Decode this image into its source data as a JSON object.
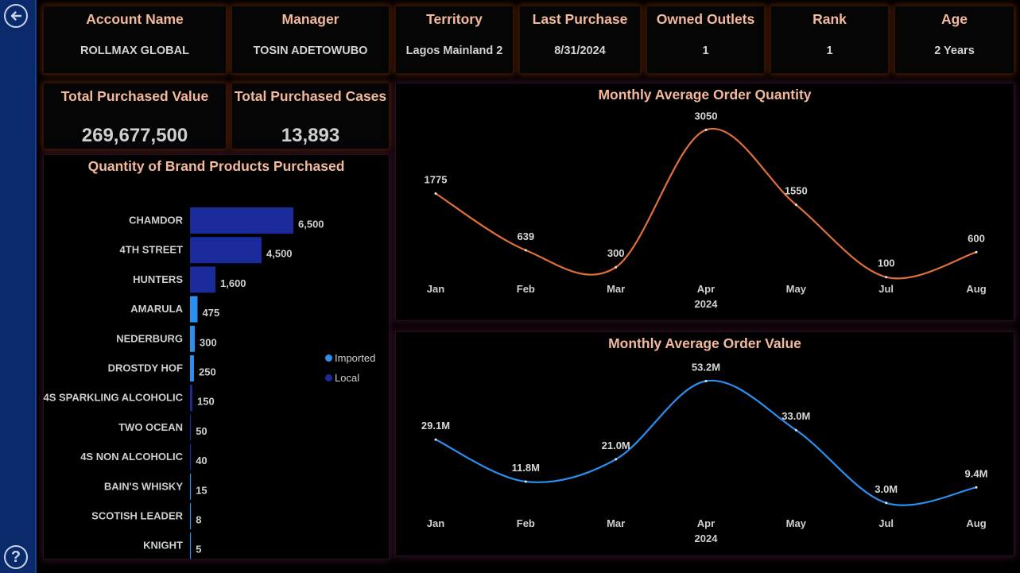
{
  "sidebar": {
    "back_icon": "arrow-left-circle-icon",
    "help_icon": "question-circle-icon",
    "help_glyph": "?"
  },
  "cards": [
    {
      "label": "Account Name",
      "value": "ROLLMAX GLOBAL"
    },
    {
      "label": "Manager",
      "value": "TOSIN ADETOWUBO"
    },
    {
      "label": "Territory",
      "value": "Lagos Mainland 2"
    },
    {
      "label": "Last Purchase",
      "value": "8/31/2024"
    },
    {
      "label": "Owned Outlets",
      "value": "1"
    },
    {
      "label": "Rank",
      "value": "1"
    },
    {
      "label": "Age",
      "value": "2 Years"
    }
  ],
  "totals": [
    {
      "label": "Total Purchased Value",
      "value": "269,677,500"
    },
    {
      "label": "Total Purchased Cases",
      "value": "13,893"
    }
  ],
  "colors": {
    "imported": "#2b8fee",
    "local": "#1a2a9a",
    "quantity_line": "#e0703a",
    "value_line": "#2b8fee",
    "title": "#f2b99c"
  },
  "chart_data": [
    {
      "type": "bar",
      "title": "Quantity of Brand Products Purchased",
      "orientation": "horizontal",
      "categories": [
        "CHAMDOR",
        "4TH STREET",
        "HUNTERS",
        "AMARULA",
        "NEDERBURG",
        "DROSTDY HOF",
        "4S SPARKLING ALCOHOLIC",
        "TWO OCEAN",
        "4S NON ALCOHOLIC",
        "BAIN'S WHISKY",
        "SCOTISH LEADER",
        "KNIGHT"
      ],
      "values": [
        6500,
        4500,
        1600,
        475,
        300,
        250,
        150,
        50,
        40,
        15,
        8,
        5
      ],
      "value_labels": [
        "6,500",
        "4,500",
        "1,600",
        "475",
        "300",
        "250",
        "150",
        "50",
        "40",
        "15",
        "8",
        "5"
      ],
      "origin": [
        "Local",
        "Local",
        "Local",
        "Imported",
        "Imported",
        "Imported",
        "Local",
        "Local",
        "Local",
        "Imported",
        "Imported",
        "Imported"
      ],
      "legend": [
        "Imported",
        "Local"
      ],
      "legend_position": "right"
    },
    {
      "type": "line",
      "title": "Monthly Average Order Quantity",
      "x": [
        "Jan",
        "Feb",
        "Mar",
        "Apr",
        "May",
        "Jul",
        "Aug"
      ],
      "values": [
        1775,
        639,
        300,
        3050,
        1550,
        100,
        600
      ],
      "value_labels": [
        "1775",
        "639",
        "300",
        "3050",
        "1550",
        "100",
        "600"
      ],
      "year_label": "2024",
      "ylim": [
        0,
        3200
      ]
    },
    {
      "type": "line",
      "title": "Monthly Average Order Value",
      "x": [
        "Jan",
        "Feb",
        "Mar",
        "Apr",
        "May",
        "Jul",
        "Aug"
      ],
      "values": [
        29.1,
        11.8,
        21.0,
        53.2,
        33.0,
        3.0,
        9.4
      ],
      "value_labels": [
        "29.1M",
        "11.8M",
        "21.0M",
        "53.2M",
        "33.0M",
        "3.0M",
        "9.4M"
      ],
      "year_label": "2024",
      "ylim": [
        0,
        56
      ]
    }
  ]
}
